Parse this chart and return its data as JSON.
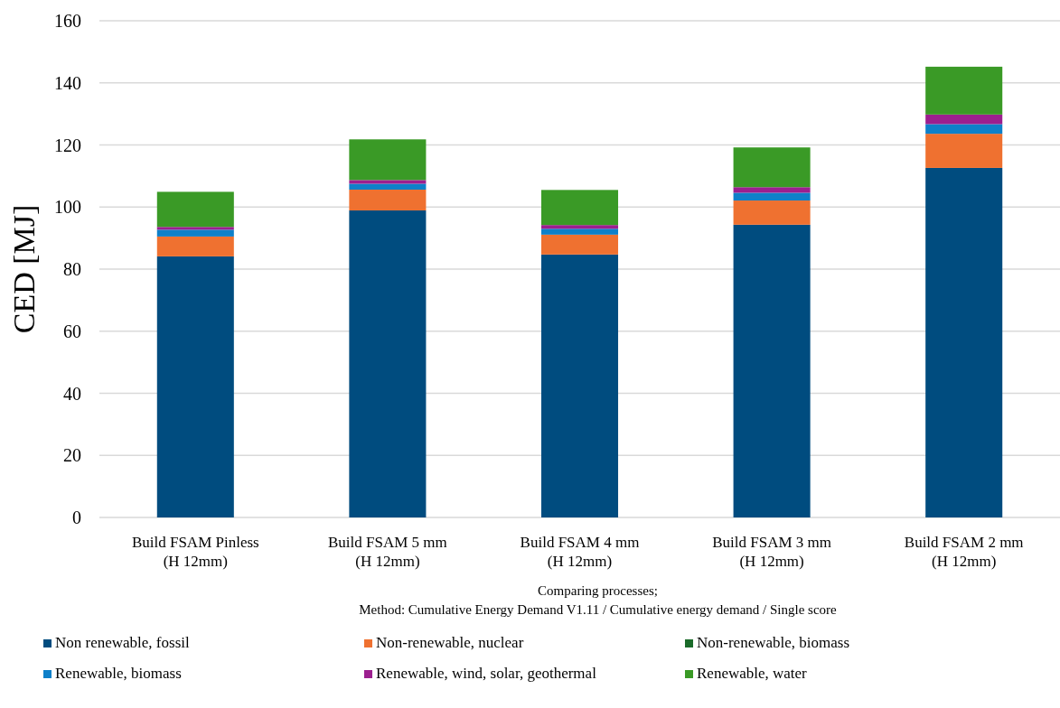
{
  "chart_data": {
    "type": "bar",
    "stacked": true,
    "ylabel": "CED [MJ]",
    "xlabel": "Comparing processes;\nMethod: Cumulative Energy Demand V1.11 / Cumulative energy demand / Single score",
    "categories": [
      "Build FSAM Pinless\n(H 12mm)",
      "Build FSAM 5 mm\n(H 12mm)",
      "Build FSAM 4 mm\n(H 12mm)",
      "Build FSAM 3 mm\n(H 12mm)",
      "Build FSAM 2 mm\n(H 12mm)"
    ],
    "series": [
      {
        "name": "Non renewable, fossil",
        "color": "#004c7f",
        "values": [
          84.1,
          98.9,
          84.7,
          94.3,
          112.6
        ]
      },
      {
        "name": "Non-renewable, nuclear",
        "color": "#ef7130",
        "values": [
          6.4,
          6.7,
          6.4,
          7.8,
          11.0
        ]
      },
      {
        "name": "Non-renewable, biomass",
        "color": "#1a6b2a",
        "values": [
          null,
          null,
          null,
          null,
          null
        ]
      },
      {
        "name": "Renewable, biomass",
        "color": "#0e80c9",
        "values": [
          2.2,
          1.9,
          1.9,
          2.5,
          3.1
        ]
      },
      {
        "name": "Renewable, wind, solar, geothermal",
        "color": "#9c1f8f",
        "values": [
          0.9,
          1.2,
          1.2,
          1.8,
          3.1
        ]
      },
      {
        "name": "Renewable, water",
        "color": "#3a9a26",
        "values": [
          11.3,
          13.1,
          11.3,
          12.8,
          15.4
        ]
      }
    ],
    "ylim": [
      0,
      160
    ],
    "yticks": [
      0,
      20,
      40,
      60,
      80,
      100,
      120,
      140,
      160
    ],
    "grid": "y",
    "legend": "bottom"
  }
}
